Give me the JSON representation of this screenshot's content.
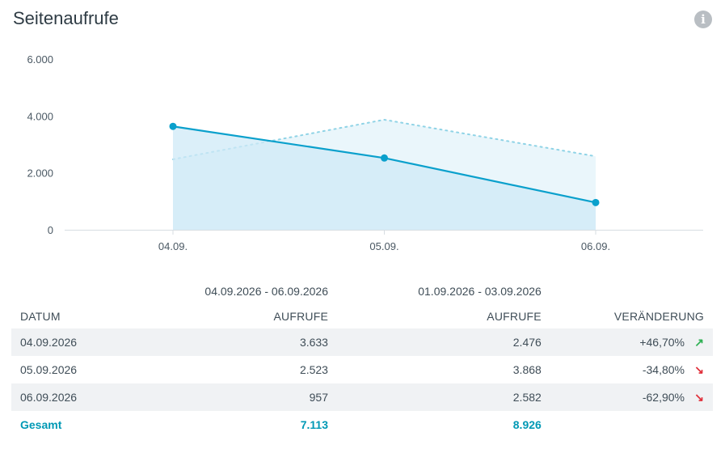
{
  "widget": {
    "title": "Seitenaufrufe",
    "info_icon": "info-icon"
  },
  "chart_data": {
    "type": "line",
    "categories": [
      "04.09.",
      "05.09.",
      "06.09."
    ],
    "ylim": [
      0,
      6000
    ],
    "yticks": [
      "6.000",
      "4.000",
      "2.000",
      "0"
    ],
    "ytick_values": [
      6000,
      4000,
      2000,
      0
    ],
    "series": [
      {
        "name": "04.09.2026 - 06.09.2026",
        "values": [
          3633,
          2523,
          957
        ],
        "style": "solid-area",
        "color": "#0aa0cc"
      },
      {
        "name": "01.09.2026 - 03.09.2026",
        "values": [
          2476,
          3868,
          2582
        ],
        "style": "dotted-area",
        "color": "#8fd3e6"
      }
    ],
    "grid": false
  },
  "table": {
    "range_current": "04.09.2026 - 06.09.2026",
    "range_previous": "01.09.2026 - 03.09.2026",
    "columns": [
      "DATUM",
      "AUFRUFE",
      "AUFRUFE",
      "VERÄNDERUNG"
    ],
    "rows": [
      {
        "date": "04.09.2026",
        "current": "3.633",
        "previous": "2.476",
        "change": "+46,70%",
        "trend": "up",
        "arrow": "↗"
      },
      {
        "date": "05.09.2026",
        "current": "2.523",
        "previous": "3.868",
        "change": "-34,80%",
        "trend": "down",
        "arrow": "↘"
      },
      {
        "date": "06.09.2026",
        "current": "957",
        "previous": "2.582",
        "change": "-62,90%",
        "trend": "down",
        "arrow": "↘"
      }
    ],
    "total": {
      "label": "Gesamt",
      "current": "7.113",
      "previous": "8.926"
    }
  }
}
